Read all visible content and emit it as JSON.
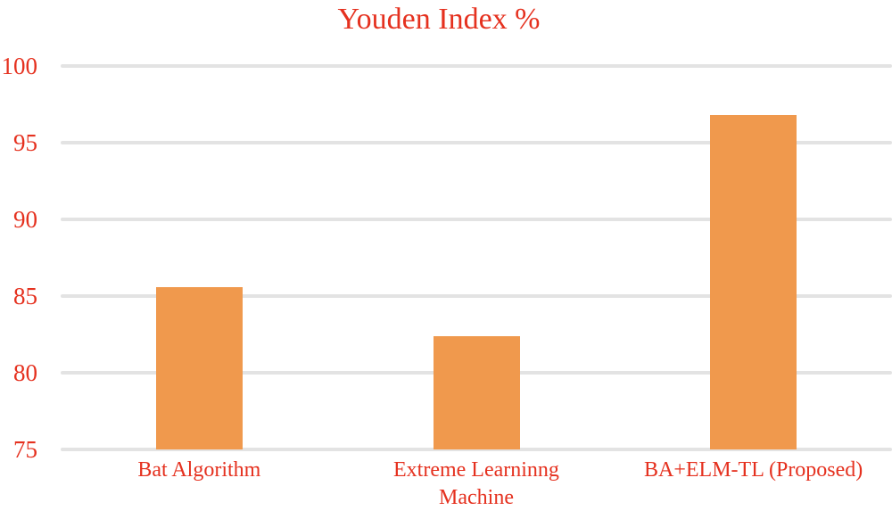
{
  "chart_data": {
    "type": "bar",
    "title": "Youden Index %",
    "categories": [
      "Bat Algorithm",
      "Extreme Learninng Machine",
      "BA+ELM-TL (Proposed)"
    ],
    "category_lines": [
      [
        "Bat Algorithm"
      ],
      [
        "Extreme Learninng",
        "Machine"
      ],
      [
        "BA+ELM-TL (Proposed)"
      ]
    ],
    "values": [
      85.6,
      82.4,
      96.8
    ],
    "xlabel": "",
    "ylabel": "",
    "ylim": [
      75,
      100
    ],
    "yticks": [
      75,
      80,
      85,
      90,
      95,
      100
    ],
    "grid": true,
    "legend": "none",
    "bar_color": "#F0994D",
    "text_color": "#E5311F",
    "gridline_color": "#E3E3E3"
  }
}
